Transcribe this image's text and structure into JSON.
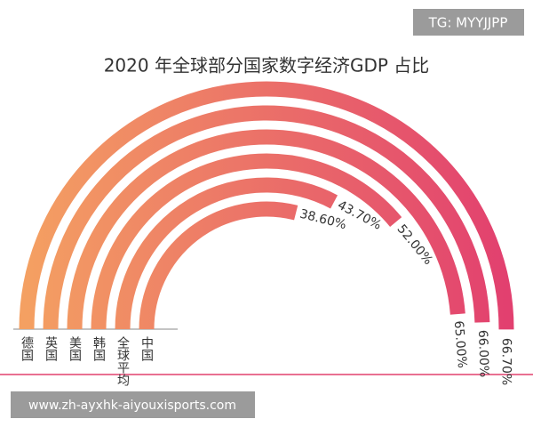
{
  "chart_data": {
    "type": "radial-bar",
    "title": "2020 年全球部分国家数字经济GDP 占比",
    "categories": [
      "德国",
      "英国",
      "美国",
      "韩国",
      "全球平均",
      "中国"
    ],
    "values": [
      66.7,
      66.0,
      65.0,
      52.0,
      43.7,
      38.6
    ],
    "value_labels": [
      "66.70%",
      "66.00%",
      "65.00%",
      "52.00%",
      "43.70%",
      "38.60%"
    ],
    "color_start": "#f4a062",
    "color_end": "#e2406f"
  },
  "overlay": {
    "tag": "TG: MYYJJPP",
    "url": "www.zh-ayxhk-aiyouxisports.com"
  }
}
